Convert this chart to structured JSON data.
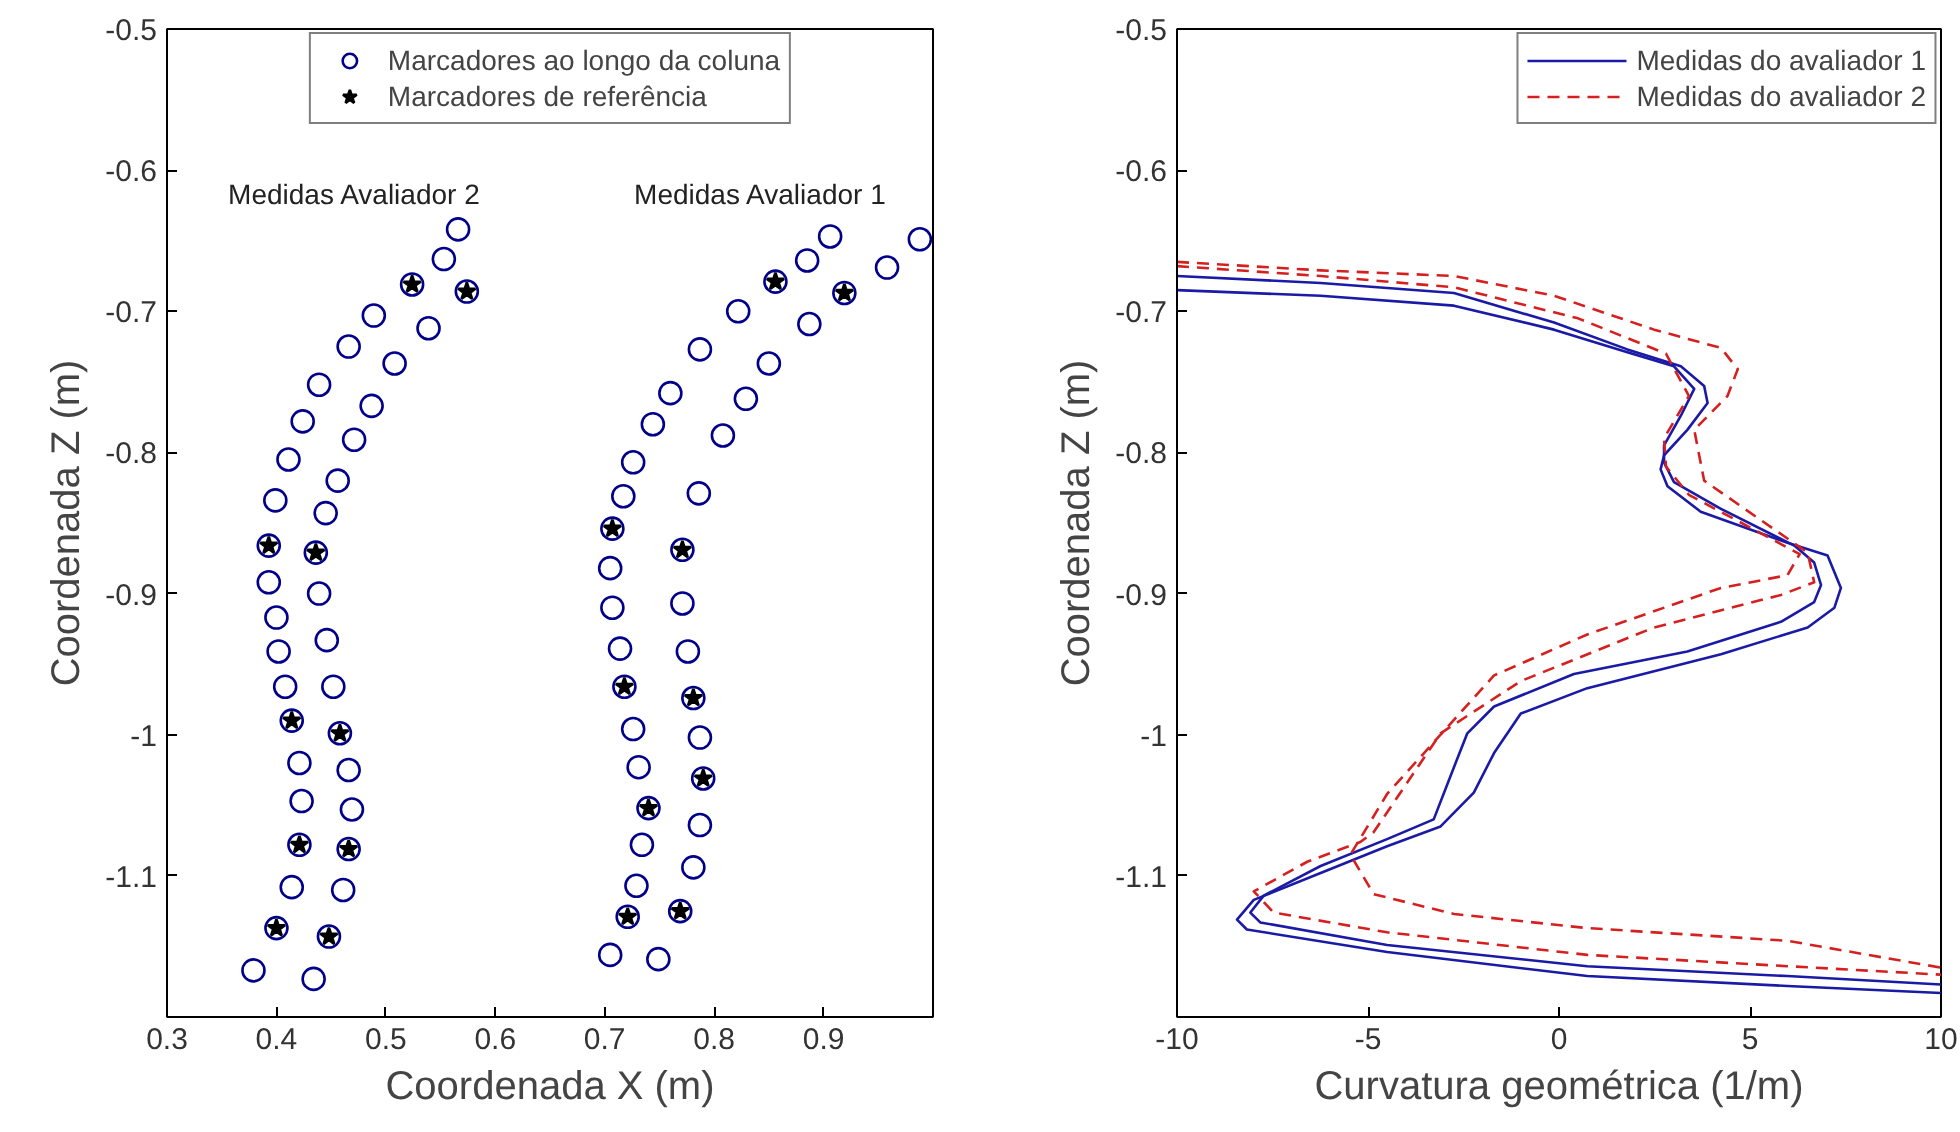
{
  "chart_data": [
    {
      "type": "scatter",
      "xlabel": "Coordenada X (m)",
      "ylabel": "Coordenada Z (m)",
      "xlim": [
        0.3,
        1.0
      ],
      "ylim": [
        -1.2,
        -0.5
      ],
      "xticks": [
        0.3,
        0.4,
        0.5,
        0.6,
        0.7,
        0.8,
        0.9,
        {
          "value": 1.0,
          "label": null
        }
      ],
      "yticks": [
        -0.5,
        -0.6,
        -0.7,
        -0.8,
        -0.9,
        -1,
        -1.1,
        {
          "value": -1.2,
          "label": null
        }
      ],
      "grid": false,
      "legend": "top",
      "annotations": [
        "Medidas Avaliador 2",
        "Medidas Avaliador 1"
      ],
      "series": [
        {
          "name": "Marcadores ao longo da coluna",
          "color": "#00008b",
          "marker": "circle",
          "x": [
            0.399,
            0.411,
            0.424,
            0.439,
            0.466,
            0.489,
            0.553,
            0.566,
            0.445,
            0.456,
            0.471,
            0.487,
            0.508,
            0.539,
            0.524,
            0.574,
            0.717,
            0.726,
            0.744,
            0.76,
            0.787,
            0.822,
            0.885,
            0.906,
            0.786,
            0.808,
            0.829,
            0.85,
            0.887,
            0.958,
            0.988,
            0.856,
            0.919,
            0.393,
            0.393,
            0.4,
            0.402,
            0.408,
            0.414,
            0.421,
            0.423,
            0.421,
            0.414,
            0.4,
            0.379,
            0.436,
            0.439,
            0.446,
            0.452,
            0.458,
            0.466,
            0.469,
            0.466,
            0.461,
            0.448,
            0.434,
            0.707,
            0.705,
            0.707,
            0.714,
            0.718,
            0.726,
            0.731,
            0.74,
            0.734,
            0.729,
            0.721,
            0.705,
            0.771,
            0.771,
            0.776,
            0.781,
            0.787,
            0.79,
            0.787,
            0.781,
            0.769,
            0.749
          ],
          "values": [
            -0.834,
            -0.805,
            -0.778,
            -0.752,
            -0.725,
            -0.703,
            -0.663,
            -0.642,
            -0.843,
            -0.82,
            -0.791,
            -0.767,
            -0.737,
            -0.712,
            -0.681,
            -0.686,
            -0.831,
            -0.807,
            -0.78,
            -0.758,
            -0.727,
            -0.7,
            -0.664,
            -0.647,
            -0.829,
            -0.788,
            -0.762,
            -0.737,
            -0.709,
            -0.669,
            -0.649,
            -0.679,
            -0.687,
            -0.866,
            -0.892,
            -0.917,
            -0.941,
            -0.966,
            -0.99,
            -1.02,
            -1.047,
            -1.078,
            -1.108,
            -1.137,
            -1.167,
            -0.871,
            -0.9,
            -0.933,
            -0.966,
            -0.999,
            -1.025,
            -1.053,
            -1.081,
            -1.11,
            -1.143,
            -1.173,
            -0.854,
            -0.882,
            -0.91,
            -0.939,
            -0.966,
            -0.996,
            -1.023,
            -1.052,
            -1.078,
            -1.107,
            -1.129,
            -1.156,
            -0.869,
            -0.907,
            -0.941,
            -0.974,
            -1.002,
            -1.031,
            -1.064,
            -1.094,
            -1.125,
            -1.159
          ]
        },
        {
          "name": "Marcadores de referência",
          "color": "#000000",
          "marker": "star",
          "x": [
            0.524,
            0.574,
            0.856,
            0.919,
            0.393,
            0.414,
            0.421,
            0.4,
            0.436,
            0.458,
            0.466,
            0.448,
            0.707,
            0.718,
            0.74,
            0.721,
            0.771,
            0.781,
            0.79,
            0.769
          ],
          "values": [
            -0.681,
            -0.686,
            -0.679,
            -0.687,
            -0.866,
            -0.99,
            -1.078,
            -1.137,
            -0.871,
            -0.999,
            -1.081,
            -1.143,
            -0.854,
            -0.966,
            -1.052,
            -1.129,
            -0.869,
            -0.974,
            -1.031,
            -1.125
          ]
        }
      ]
    },
    {
      "type": "line",
      "xlabel": "Curvatura geométrica (1/m)",
      "ylabel": "Coordenada Z (m)",
      "xlim": [
        -10,
        10
      ],
      "ylim": [
        -1.2,
        -0.5
      ],
      "xticks": [
        -10,
        -5,
        0,
        5,
        10
      ],
      "yticks": [
        -0.5,
        -0.6,
        -0.7,
        -0.8,
        -0.9,
        -1,
        -1.1,
        {
          "value": -1.2,
          "label": null
        }
      ],
      "grid": false,
      "legend": "top right",
      "series": [
        {
          "name": "Medidas do avaliador 1",
          "color": "#1a1aa6",
          "line_style": "solid",
          "x": [
            -10,
            -6.24,
            -2.75,
            -0.13,
            1.79,
            3.19,
            3.8,
            3.89,
            3.36,
            2.75,
            2.66,
            2.84,
            3.71,
            5.98,
            7.03,
            7.38,
            7.21,
            6.51,
            4.24,
            0.74,
            -1.0,
            -1.7,
            -2.23,
            -3.1,
            -4.5,
            -6.24,
            -7.99,
            -8.43,
            -8.17,
            -4.5,
            0.74,
            5.98,
            10
          ],
          "values": [
            -0.675,
            -0.68,
            -0.687,
            -0.708,
            -0.727,
            -0.739,
            -0.753,
            -0.765,
            -0.784,
            -0.802,
            -0.812,
            -0.824,
            -0.842,
            -0.864,
            -0.873,
            -0.896,
            -0.91,
            -0.924,
            -0.943,
            -0.967,
            -0.985,
            -1.013,
            -1.041,
            -1.065,
            -1.079,
            -1.098,
            -1.117,
            -1.131,
            -1.138,
            -1.154,
            -1.171,
            -1.178,
            -1.183
          ]
        },
        {
          "color": "#1a1aa6",
          "line_style": "solid",
          "x": [
            -10,
            -6.24,
            -2.75,
            -0.13,
            1.79,
            3.01,
            3.54,
            3.19,
            2.75,
            2.75,
            3.01,
            4.24,
            6.16,
            6.68,
            6.86,
            6.68,
            5.81,
            3.36,
            0.39,
            -1.7,
            -2.4,
            -2.75,
            -3.28,
            -4.5,
            -6.24,
            -7.73,
            -8.08,
            -7.82,
            -4.5,
            0.74,
            5.98,
            10
          ],
          "values": [
            -0.685,
            -0.689,
            -0.696,
            -0.713,
            -0.729,
            -0.739,
            -0.755,
            -0.774,
            -0.795,
            -0.807,
            -0.821,
            -0.84,
            -0.866,
            -0.878,
            -0.894,
            -0.906,
            -0.92,
            -0.941,
            -0.957,
            -0.98,
            -0.999,
            -1.023,
            -1.06,
            -1.074,
            -1.093,
            -1.114,
            -1.126,
            -1.133,
            -1.149,
            -1.164,
            -1.171,
            -1.177
          ]
        },
        {
          "name": "Medidas do avaliador 2",
          "color": "#d62020",
          "line_style": "dashed",
          "x": [
            -10,
            -6.24,
            -2.75,
            -0.13,
            2.49,
            4.24,
            4.68,
            4.41,
            3.54,
            3.8,
            6.51,
            6.68,
            5.81,
            2.49,
            -1.0,
            -3.1,
            -4.85,
            -5.2,
            -6.59,
            -7.99,
            -7.47,
            -4.5,
            0.74,
            5.98,
            10
          ],
          "values": [
            -0.665,
            -0.671,
            -0.675,
            -0.689,
            -0.713,
            -0.726,
            -0.741,
            -0.76,
            -0.784,
            -0.82,
            -0.871,
            -0.892,
            -0.901,
            -0.924,
            -0.962,
            -0.999,
            -1.069,
            -1.076,
            -1.09,
            -1.111,
            -1.126,
            -1.14,
            -1.156,
            -1.164,
            -1.17
          ]
        },
        {
          "color": "#d62020",
          "line_style": "dashed",
          "x": [
            -10,
            -6.24,
            -2.75,
            0.5,
            2.8,
            3.4,
            2.75,
            2.8,
            3.4,
            6.3,
            5.98,
            4.24,
            0.74,
            -1.7,
            -3.1,
            -4.5,
            -5.46,
            -4.85,
            -2.75,
            0.74,
            5.98,
            10
          ],
          "values": [
            -0.668,
            -0.675,
            -0.683,
            -0.705,
            -0.73,
            -0.76,
            -0.79,
            -0.81,
            -0.83,
            -0.872,
            -0.887,
            -0.896,
            -0.929,
            -0.958,
            -1.0,
            -1.042,
            -1.085,
            -1.113,
            -1.127,
            -1.137,
            -1.146,
            -1.165
          ]
        }
      ]
    }
  ]
}
